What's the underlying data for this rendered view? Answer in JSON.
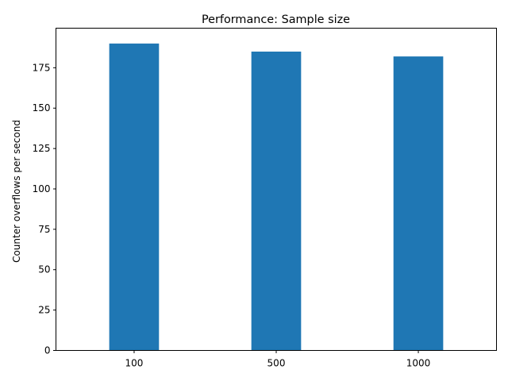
{
  "chart_data": {
    "type": "bar",
    "title": "Performance: Sample size",
    "xlabel": "",
    "ylabel": "Counter overflows per second",
    "categories": [
      "100",
      "500",
      "1000"
    ],
    "values": [
      190,
      185,
      182
    ],
    "ylim": [
      0,
      199.5
    ],
    "yticks": [
      0,
      25,
      50,
      75,
      100,
      125,
      150,
      175
    ],
    "bar_color": "#1f77b4",
    "grid": false,
    "legend": "none"
  }
}
